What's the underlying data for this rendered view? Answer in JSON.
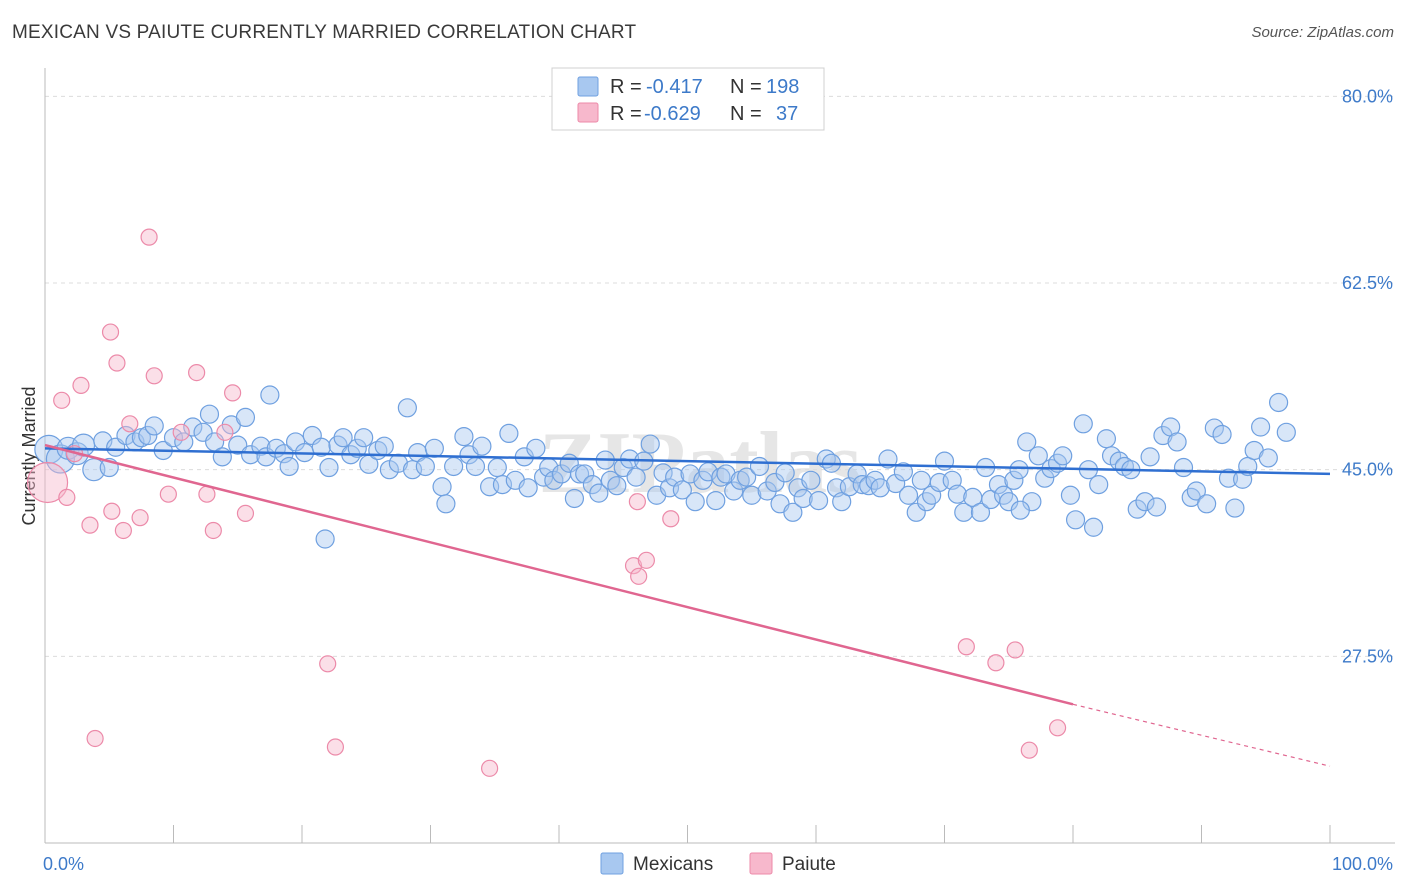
{
  "title": "MEXICAN VS PAIUTE CURRENTLY MARRIED CORRELATION CHART",
  "source": "Source: ZipAtlas.com",
  "watermark": "ZIPatlas",
  "colors": {
    "mexicans_fill": "#a8c8f0",
    "mexicans_stroke": "#6fa0e0",
    "mexicans_line": "#2f6fd1",
    "paiute_fill": "#f7b8cc",
    "paiute_stroke": "#ec8aa9",
    "paiute_line": "#e06690",
    "label_blue": "#3d7ac9"
  },
  "legend_top": {
    "mexicans": {
      "r_label": "R =",
      "r_value": "-0.417",
      "n_label": "N =",
      "n_value": "198"
    },
    "paiute": {
      "r_label": "R =",
      "r_value": "-0.629",
      "n_label": "N =",
      "n_value": "37"
    }
  },
  "legend_bottom": {
    "mexicans": "Mexicans",
    "paiute": "Paiute"
  },
  "chart_data": {
    "type": "scatter",
    "title": "MEXICAN VS PAIUTE CURRENTLY MARRIED CORRELATION CHART",
    "xlabel": "",
    "ylabel": "Currently Married",
    "xlim": [
      0,
      100
    ],
    "ylim": [
      10,
      82
    ],
    "x_tick_labels": [
      "0.0%",
      "100.0%"
    ],
    "y_ticks": [
      27.5,
      45.0,
      62.5,
      80.0
    ],
    "y_tick_labels": [
      "27.5%",
      "45.0%",
      "62.5%",
      "80.0%"
    ],
    "grid": "horizontal dashed",
    "legend_placement": "top-center",
    "series": [
      {
        "name": "Mexicans",
        "trend": {
          "x0": 0,
          "y0": 47.0,
          "x1": 100,
          "y1": 44.6
        },
        "points": [
          [
            0.3,
            46.9
          ],
          [
            1.2,
            46.0
          ],
          [
            1.8,
            47.0
          ],
          [
            2.5,
            46.5
          ],
          [
            3.0,
            47.3
          ],
          [
            3.8,
            45.0
          ],
          [
            4.5,
            47.7
          ],
          [
            5.0,
            45.2
          ],
          [
            5.5,
            47.1
          ],
          [
            6.3,
            48.2
          ],
          [
            7.0,
            47.6
          ],
          [
            7.5,
            48.0
          ],
          [
            8.0,
            48.2
          ],
          [
            8.5,
            49.1
          ],
          [
            9.2,
            46.8
          ],
          [
            10.0,
            48.0
          ],
          [
            10.8,
            47.6
          ],
          [
            11.5,
            49.0
          ],
          [
            12.3,
            48.5
          ],
          [
            12.8,
            50.2
          ],
          [
            13.2,
            47.6
          ],
          [
            13.8,
            46.2
          ],
          [
            14.5,
            49.2
          ],
          [
            15.0,
            47.3
          ],
          [
            15.6,
            49.9
          ],
          [
            16.0,
            46.4
          ],
          [
            16.8,
            47.2
          ],
          [
            17.2,
            46.2
          ],
          [
            17.5,
            52.0
          ],
          [
            18.0,
            47.0
          ],
          [
            18.6,
            46.5
          ],
          [
            19.0,
            45.3
          ],
          [
            19.5,
            47.6
          ],
          [
            20.2,
            46.6
          ],
          [
            20.8,
            48.2
          ],
          [
            21.5,
            47.1
          ],
          [
            21.8,
            38.5
          ],
          [
            22.1,
            45.2
          ],
          [
            22.8,
            47.3
          ],
          [
            23.2,
            48.0
          ],
          [
            23.8,
            46.4
          ],
          [
            24.3,
            47.0
          ],
          [
            24.8,
            48.0
          ],
          [
            25.2,
            45.5
          ],
          [
            25.9,
            46.8
          ],
          [
            26.4,
            47.2
          ],
          [
            26.8,
            45.0
          ],
          [
            27.5,
            45.6
          ],
          [
            28.2,
            50.8
          ],
          [
            28.6,
            45.0
          ],
          [
            29.0,
            46.6
          ],
          [
            29.6,
            45.3
          ],
          [
            30.3,
            47.0
          ],
          [
            30.9,
            43.4
          ],
          [
            31.2,
            41.8
          ],
          [
            31.8,
            45.3
          ],
          [
            32.6,
            48.1
          ],
          [
            33.0,
            46.4
          ],
          [
            33.5,
            45.3
          ],
          [
            34.0,
            47.2
          ],
          [
            34.6,
            43.4
          ],
          [
            35.2,
            45.2
          ],
          [
            35.6,
            43.6
          ],
          [
            36.1,
            48.4
          ],
          [
            36.6,
            44.0
          ],
          [
            37.3,
            46.2
          ],
          [
            37.6,
            43.3
          ],
          [
            38.2,
            47.0
          ],
          [
            38.8,
            44.3
          ],
          [
            39.2,
            45.2
          ],
          [
            39.6,
            44.0
          ],
          [
            40.2,
            44.6
          ],
          [
            40.8,
            45.6
          ],
          [
            41.2,
            42.3
          ],
          [
            41.6,
            44.6
          ],
          [
            42.0,
            44.6
          ],
          [
            42.6,
            43.6
          ],
          [
            43.1,
            42.8
          ],
          [
            43.6,
            45.9
          ],
          [
            44.0,
            44.0
          ],
          [
            44.5,
            43.5
          ],
          [
            45.0,
            45.2
          ],
          [
            45.5,
            46.0
          ],
          [
            46.0,
            44.3
          ],
          [
            46.6,
            45.8
          ],
          [
            47.1,
            47.4
          ],
          [
            47.6,
            42.6
          ],
          [
            48.1,
            44.7
          ],
          [
            48.6,
            43.3
          ],
          [
            49.0,
            44.3
          ],
          [
            49.6,
            43.1
          ],
          [
            50.2,
            44.6
          ],
          [
            50.6,
            42.0
          ],
          [
            51.2,
            44.0
          ],
          [
            51.6,
            44.8
          ],
          [
            52.2,
            42.1
          ],
          [
            52.6,
            44.3
          ],
          [
            53.0,
            44.6
          ],
          [
            53.6,
            43.0
          ],
          [
            54.1,
            44.0
          ],
          [
            54.6,
            44.3
          ],
          [
            55.0,
            42.6
          ],
          [
            55.6,
            45.3
          ],
          [
            56.2,
            43.0
          ],
          [
            56.8,
            43.8
          ],
          [
            57.2,
            41.8
          ],
          [
            57.6,
            44.7
          ],
          [
            58.2,
            41.0
          ],
          [
            58.6,
            43.3
          ],
          [
            59.0,
            42.3
          ],
          [
            59.6,
            44.0
          ],
          [
            60.2,
            42.1
          ],
          [
            60.8,
            46.0
          ],
          [
            61.2,
            45.6
          ],
          [
            61.6,
            43.3
          ],
          [
            62.0,
            42.0
          ],
          [
            62.6,
            43.4
          ],
          [
            63.2,
            44.6
          ],
          [
            63.6,
            43.6
          ],
          [
            64.1,
            43.5
          ],
          [
            64.6,
            44.0
          ],
          [
            65.0,
            43.3
          ],
          [
            65.6,
            46.0
          ],
          [
            66.2,
            43.7
          ],
          [
            66.8,
            44.8
          ],
          [
            67.2,
            42.6
          ],
          [
            67.8,
            41.0
          ],
          [
            68.2,
            44.0
          ],
          [
            68.6,
            42.0
          ],
          [
            69.0,
            42.6
          ],
          [
            69.6,
            43.8
          ],
          [
            70.0,
            45.8
          ],
          [
            70.6,
            44.0
          ],
          [
            71.0,
            42.7
          ],
          [
            71.5,
            41.0
          ],
          [
            72.2,
            42.4
          ],
          [
            72.8,
            41.0
          ],
          [
            73.2,
            45.2
          ],
          [
            73.6,
            42.2
          ],
          [
            74.2,
            43.6
          ],
          [
            74.6,
            42.6
          ],
          [
            75.0,
            42.0
          ],
          [
            75.4,
            44.0
          ],
          [
            75.8,
            45.0
          ],
          [
            76.4,
            47.6
          ],
          [
            76.8,
            42.0
          ],
          [
            77.3,
            46.3
          ],
          [
            77.8,
            44.2
          ],
          [
            78.3,
            45.1
          ],
          [
            78.8,
            45.6
          ],
          [
            79.2,
            46.3
          ],
          [
            79.8,
            42.6
          ],
          [
            80.2,
            40.3
          ],
          [
            80.8,
            49.3
          ],
          [
            81.2,
            45.0
          ],
          [
            81.6,
            39.6
          ],
          [
            82.0,
            43.6
          ],
          [
            82.6,
            47.9
          ],
          [
            83.0,
            46.3
          ],
          [
            83.6,
            45.8
          ],
          [
            84.0,
            45.3
          ],
          [
            84.5,
            45.0
          ],
          [
            85.0,
            41.3
          ],
          [
            85.6,
            42.0
          ],
          [
            86.0,
            46.2
          ],
          [
            86.5,
            41.5
          ],
          [
            87.0,
            48.2
          ],
          [
            87.6,
            49.0
          ],
          [
            88.1,
            47.6
          ],
          [
            88.6,
            45.2
          ],
          [
            89.2,
            42.4
          ],
          [
            89.6,
            43.0
          ],
          [
            90.4,
            41.8
          ],
          [
            91.0,
            48.9
          ],
          [
            91.6,
            48.3
          ],
          [
            92.1,
            44.2
          ],
          [
            92.6,
            41.4
          ],
          [
            93.2,
            44.1
          ],
          [
            93.6,
            45.3
          ],
          [
            94.1,
            46.8
          ],
          [
            94.6,
            49.0
          ],
          [
            95.2,
            46.1
          ],
          [
            96.0,
            51.3
          ],
          [
            96.6,
            48.5
          ],
          [
            75.9,
            41.2
          ]
        ]
      },
      {
        "name": "Paiute",
        "trend": {
          "x0": 0,
          "y0": 47.3,
          "x1": 80,
          "y1": 23.0
        },
        "trend_dashed_to": {
          "x": 100,
          "y": 17.2
        },
        "points": [
          [
            0.2,
            43.8
          ],
          [
            1.3,
            51.5
          ],
          [
            1.7,
            42.4
          ],
          [
            2.3,
            46.5
          ],
          [
            2.8,
            52.9
          ],
          [
            3.5,
            39.8
          ],
          [
            3.9,
            19.8
          ],
          [
            5.2,
            41.1
          ],
          [
            5.1,
            57.9
          ],
          [
            5.6,
            55.0
          ],
          [
            6.1,
            39.3
          ],
          [
            6.6,
            49.3
          ],
          [
            7.4,
            40.5
          ],
          [
            8.1,
            66.8
          ],
          [
            8.5,
            53.8
          ],
          [
            9.6,
            42.7
          ],
          [
            10.6,
            48.5
          ],
          [
            11.8,
            54.1
          ],
          [
            12.6,
            42.7
          ],
          [
            13.1,
            39.3
          ],
          [
            14.0,
            48.5
          ],
          [
            14.6,
            52.2
          ],
          [
            15.6,
            40.9
          ],
          [
            22.0,
            26.8
          ],
          [
            22.6,
            19.0
          ],
          [
            34.6,
            17.0
          ],
          [
            45.8,
            36.0
          ],
          [
            46.1,
            42.0
          ],
          [
            46.2,
            35.0
          ],
          [
            46.8,
            36.5
          ],
          [
            48.7,
            40.4
          ],
          [
            71.7,
            28.4
          ],
          [
            74.0,
            26.9
          ],
          [
            75.5,
            28.1
          ],
          [
            76.6,
            18.7
          ],
          [
            78.8,
            20.8
          ]
        ]
      }
    ]
  }
}
